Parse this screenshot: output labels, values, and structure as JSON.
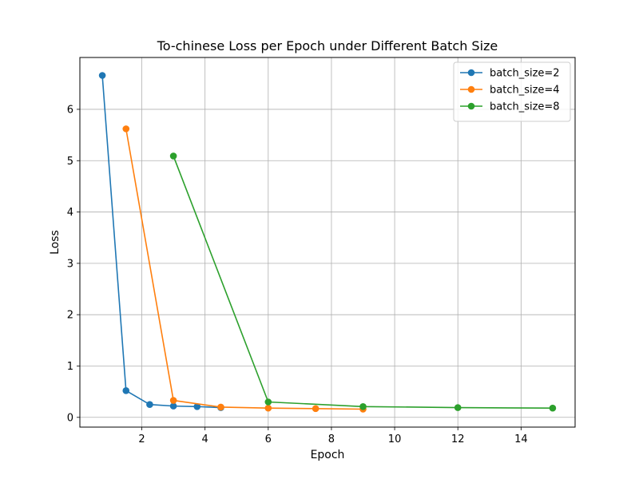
{
  "chart_data": {
    "type": "line",
    "title": "To-chinese Loss per Epoch under Different Batch Size",
    "xlabel": "Epoch",
    "ylabel": "Loss",
    "xlim": [
      0.04,
      15.71
    ],
    "ylim": [
      -0.19,
      7.01
    ],
    "xticks": [
      2,
      4,
      6,
      8,
      10,
      12,
      14
    ],
    "yticks": [
      0,
      1,
      2,
      3,
      4,
      5,
      6
    ],
    "grid": true,
    "legend_position": "top-right",
    "series": [
      {
        "name": "batch_size=2",
        "color": "#1f77b4",
        "x": [
          0.75,
          1.5,
          2.25,
          3.0,
          3.75,
          4.5
        ],
        "y": [
          6.66,
          0.52,
          0.25,
          0.22,
          0.21,
          0.19
        ]
      },
      {
        "name": "batch_size=4",
        "color": "#ff7f0e",
        "x": [
          1.5,
          3.0,
          4.5,
          6.0,
          7.5,
          9.0
        ],
        "y": [
          5.62,
          0.33,
          0.2,
          0.18,
          0.17,
          0.16
        ]
      },
      {
        "name": "batch_size=8",
        "color": "#2ca02c",
        "x": [
          3.0,
          6.0,
          9.0,
          12.0,
          15.0
        ],
        "y": [
          5.09,
          0.3,
          0.21,
          0.19,
          0.18
        ]
      }
    ]
  }
}
